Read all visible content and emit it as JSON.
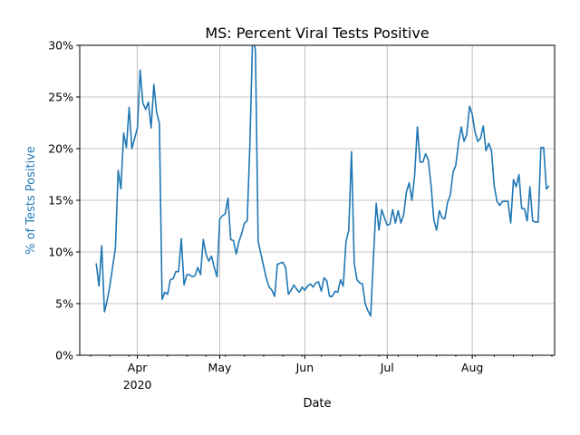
{
  "chart_data": {
    "type": "line",
    "title": "MS: Percent Viral Tests Positive",
    "xlabel": "Date",
    "ylabel": "% of Tests Positive",
    "ylabel_color": "#1f77b4",
    "line_color": "#1f77b4",
    "grid": true,
    "x_range": [
      "2020-03-11",
      "2020-08-31"
    ],
    "ylim": [
      0,
      30
    ],
    "y_ticks": [
      {
        "value": 0,
        "label": "0%"
      },
      {
        "value": 5,
        "label": "5%"
      },
      {
        "value": 10,
        "label": "10%"
      },
      {
        "value": 15,
        "label": "15%"
      },
      {
        "value": 20,
        "label": "20%"
      },
      {
        "value": 25,
        "label": "25%"
      },
      {
        "value": 30,
        "label": "30%"
      }
    ],
    "x_ticks": [
      {
        "date": "2020-04-01",
        "label": "Apr",
        "sublabel": "2020"
      },
      {
        "date": "2020-05-01",
        "label": "May",
        "sublabel": ""
      },
      {
        "date": "2020-06-01",
        "label": "Jun",
        "sublabel": ""
      },
      {
        "date": "2020-07-01",
        "label": "Jul",
        "sublabel": ""
      },
      {
        "date": "2020-08-01",
        "label": "Aug",
        "sublabel": ""
      }
    ],
    "series": [
      {
        "name": "",
        "x_start": "2020-03-17",
        "values": [
          8.9,
          6.7,
          10.6,
          4.2,
          5.3,
          6.8,
          8.6,
          10.4,
          17.9,
          16.1,
          21.5,
          20.1,
          24.0,
          20.0,
          21.0,
          22.0,
          27.6,
          24.4,
          23.8,
          24.5,
          22.0,
          26.2,
          23.5,
          22.5,
          5.4,
          6.1,
          5.9,
          7.3,
          7.4,
          8.1,
          8.1,
          11.3,
          6.8,
          7.8,
          7.8,
          7.6,
          7.7,
          8.5,
          7.8,
          11.2,
          9.8,
          9.1,
          9.6,
          8.5,
          7.6,
          13.2,
          13.5,
          13.7,
          15.2,
          11.2,
          11.1,
          9.8,
          11.0,
          11.8,
          12.8,
          13.0,
          20.5,
          31.0,
          29.5,
          11.0,
          9.8,
          8.6,
          7.4,
          6.6,
          6.3,
          5.7,
          8.8,
          8.9,
          9.0,
          8.5,
          5.9,
          6.3,
          6.8,
          6.4,
          6.1,
          6.6,
          6.3,
          6.7,
          6.9,
          6.6,
          7.0,
          7.1,
          6.2,
          7.5,
          7.2,
          5.7,
          5.7,
          6.2,
          6.1,
          7.3,
          6.7,
          11.0,
          12.1,
          19.7,
          8.9,
          7.3,
          7.0,
          6.9,
          5.0,
          4.3,
          3.8,
          9.5,
          14.7,
          12.1,
          14.1,
          13.3,
          12.6,
          12.7,
          14.1,
          12.8,
          14.0,
          12.8,
          13.6,
          15.8,
          16.7,
          15.0,
          17.4,
          22.1,
          18.7,
          18.7,
          19.5,
          18.9,
          16.4,
          13.1,
          12.1,
          14.0,
          13.3,
          13.2,
          14.8,
          15.5,
          17.7,
          18.4,
          20.6,
          22.1,
          20.7,
          21.4,
          24.1,
          23.3,
          21.6,
          20.7,
          21.0,
          22.2,
          19.8,
          20.5,
          19.8,
          16.4,
          14.9,
          14.5,
          14.9,
          14.9,
          14.9,
          12.8,
          17.0,
          16.3,
          17.5,
          14.2,
          14.2,
          13.0,
          16.3,
          13.0,
          12.9,
          12.9,
          20.1,
          20.1,
          16.1,
          16.4
        ]
      }
    ]
  }
}
